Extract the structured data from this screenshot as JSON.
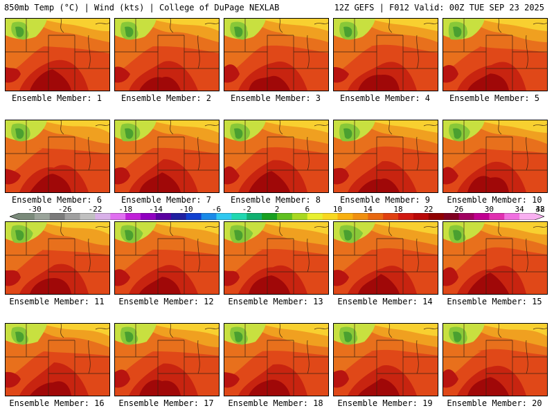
{
  "header": {
    "left": "850mb Temp (°C) | Wind (kts) | College of DuPage NEXLAB",
    "right": "12Z GEFS | F012 Valid: 00Z TUE SEP 23 2025"
  },
  "caption_prefix": "Ensemble Member: ",
  "members": [
    1,
    2,
    3,
    4,
    5,
    6,
    7,
    8,
    9,
    10,
    11,
    12,
    13,
    14,
    15,
    16,
    17,
    18,
    19,
    20
  ],
  "colorbar": {
    "labels": [
      "-30",
      "-26",
      "-22",
      "-18",
      "-14",
      "-10",
      "-6",
      "-2",
      "2",
      "6",
      "10",
      "14",
      "18",
      "22",
      "26",
      "30",
      "34",
      "38",
      "42"
    ],
    "colors": [
      "#7a8a7a",
      "#9aa49a",
      "#7b7b7b",
      "#a0a0a0",
      "#c0c0c0",
      "#d8b0e8",
      "#e070f0",
      "#c020d8",
      "#9000c0",
      "#5a00a0",
      "#2020a0",
      "#1040d0",
      "#1a8ae8",
      "#30c8f0",
      "#20d8b0",
      "#10b070",
      "#18a020",
      "#60c020",
      "#a8d820",
      "#e8f030",
      "#f8d820",
      "#f8b010",
      "#f09010",
      "#e86810",
      "#e04010",
      "#d01810",
      "#b80808",
      "#900000",
      "#800020",
      "#a00060",
      "#c00090",
      "#e030b0",
      "#f070e0",
      "#f8b0f0"
    ]
  }
}
